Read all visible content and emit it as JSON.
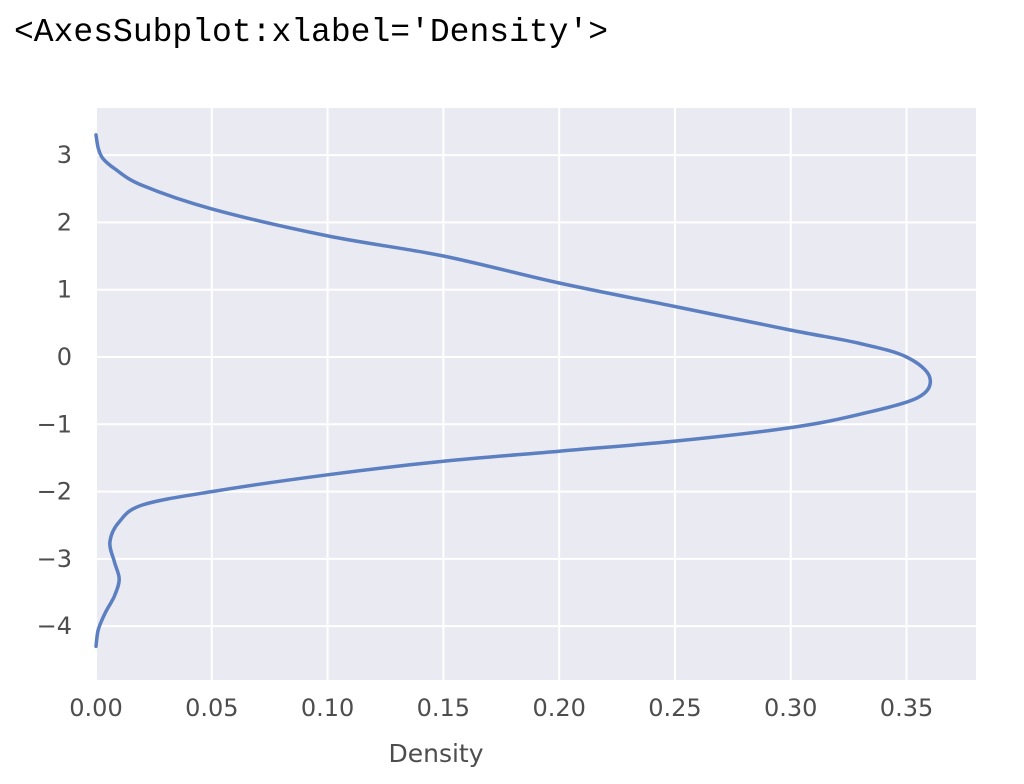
{
  "output_repr": "<AxesSubplot:xlabel='Density'>",
  "colors": {
    "background": "#eaeaf2",
    "grid": "#ffffff",
    "line": "#5b7fc0",
    "text": "#4d4d4d"
  },
  "chart_data": {
    "type": "line",
    "title": "",
    "xlabel": "Density",
    "ylabel": "",
    "xlim": [
      0.0,
      0.38
    ],
    "ylim": [
      -4.8,
      3.7
    ],
    "xticks": [
      0.0,
      0.05,
      0.1,
      0.15,
      0.2,
      0.25,
      0.3,
      0.35
    ],
    "xtick_labels": [
      "0.00",
      "0.05",
      "0.10",
      "0.15",
      "0.20",
      "0.25",
      "0.30",
      "0.35"
    ],
    "yticks": [
      3,
      2,
      1,
      0,
      -1,
      -2,
      -3,
      -4
    ],
    "ytick_labels": [
      "3",
      "2",
      "1",
      "0",
      "−1",
      "−2",
      "−3",
      "−4"
    ],
    "grid": true,
    "orientation": "vertical-kde",
    "series": [
      {
        "x": [
          0.0,
          0.001,
          0.003,
          0.008,
          0.02,
          0.05,
          0.1,
          0.15,
          0.2,
          0.25,
          0.3,
          0.33,
          0.35,
          0.36,
          0.355,
          0.33,
          0.3,
          0.25,
          0.2,
          0.15,
          0.1,
          0.05,
          0.02,
          0.01,
          0.006,
          0.008,
          0.01,
          0.008,
          0.004,
          0.001,
          0.0
        ],
        "y": [
          3.3,
          3.1,
          2.95,
          2.8,
          2.55,
          2.2,
          1.8,
          1.5,
          1.1,
          0.75,
          0.4,
          0.2,
          0.0,
          -0.3,
          -0.6,
          -0.85,
          -1.05,
          -1.25,
          -1.4,
          -1.55,
          -1.75,
          -2.0,
          -2.2,
          -2.45,
          -2.75,
          -3.05,
          -3.3,
          -3.55,
          -3.8,
          -4.05,
          -4.3
        ]
      }
    ]
  }
}
